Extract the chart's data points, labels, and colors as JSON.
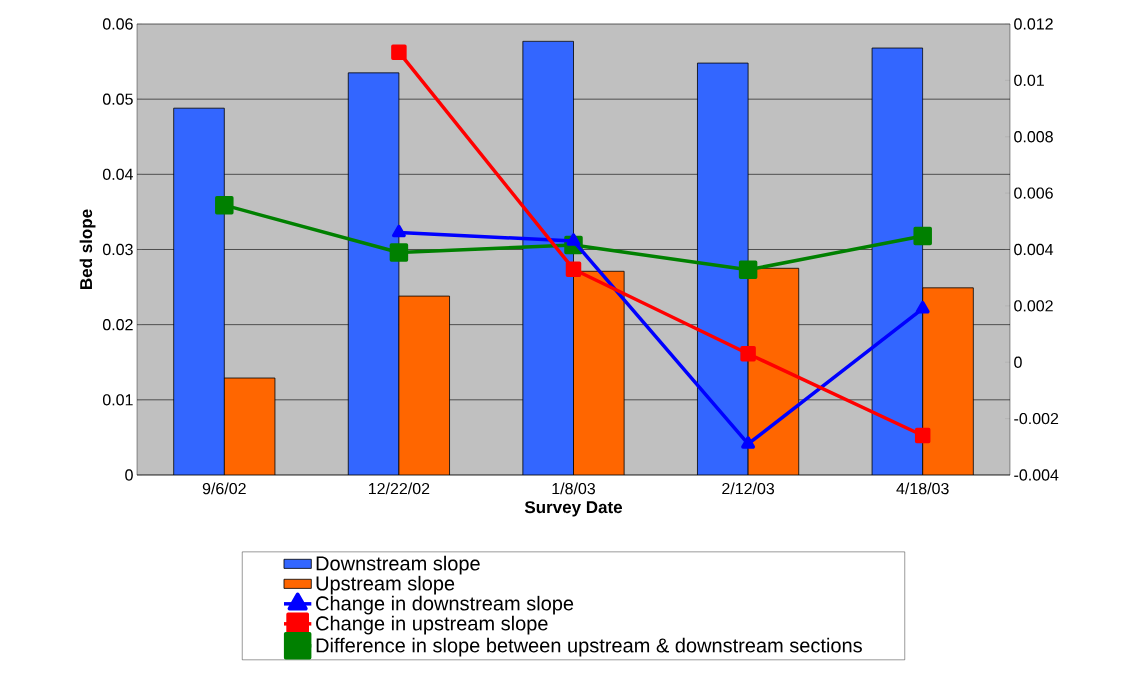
{
  "chart_data": {
    "type": "bar",
    "xlabel": "Survey Date",
    "ylabel": "Bed slope",
    "categories": [
      "9/6/02",
      "12/22/02",
      "1/8/03",
      "2/12/03",
      "4/18/03"
    ],
    "series": [
      {
        "name": "Downstream slope",
        "color": "#3366ff",
        "values": [
          0.0488,
          0.0535,
          0.0577,
          0.0548,
          0.0568
        ]
      },
      {
        "name": "Upstream slope",
        "color": "#ff6600",
        "values": [
          0.0129,
          0.0238,
          0.0271,
          0.0275,
          0.0249
        ]
      },
      {
        "name": "Change in downstream slope",
        "type": "line",
        "axis": "y2",
        "marker": "triangle",
        "color": "#0000ff",
        "values": [
          null,
          0.0046,
          0.0043,
          -0.0029,
          0.0019
        ]
      },
      {
        "name": "Change in upstream slope",
        "type": "line",
        "axis": "y2",
        "marker": "square",
        "color": "#ff0000",
        "values": [
          null,
          0.011,
          0.0033,
          0.0003,
          -0.0026
        ]
      },
      {
        "name": "Difference in slope between upstream & downstream sections",
        "type": "line",
        "marker": "square",
        "color": "#008000",
        "values": [
          0.0359,
          0.0296,
          0.0306,
          0.0273,
          0.0318
        ]
      }
    ],
    "ylim": [
      0,
      0.06
    ],
    "yticks": [
      0,
      0.01,
      0.02,
      0.03,
      0.04,
      0.05,
      0.06
    ],
    "y2lim": [
      -0.004,
      0.012
    ],
    "y2ticks": [
      -0.004,
      -0.002,
      0,
      0.002,
      0.004,
      0.006,
      0.008,
      0.01,
      0.012
    ],
    "grid": "y",
    "legend": "bottom"
  }
}
